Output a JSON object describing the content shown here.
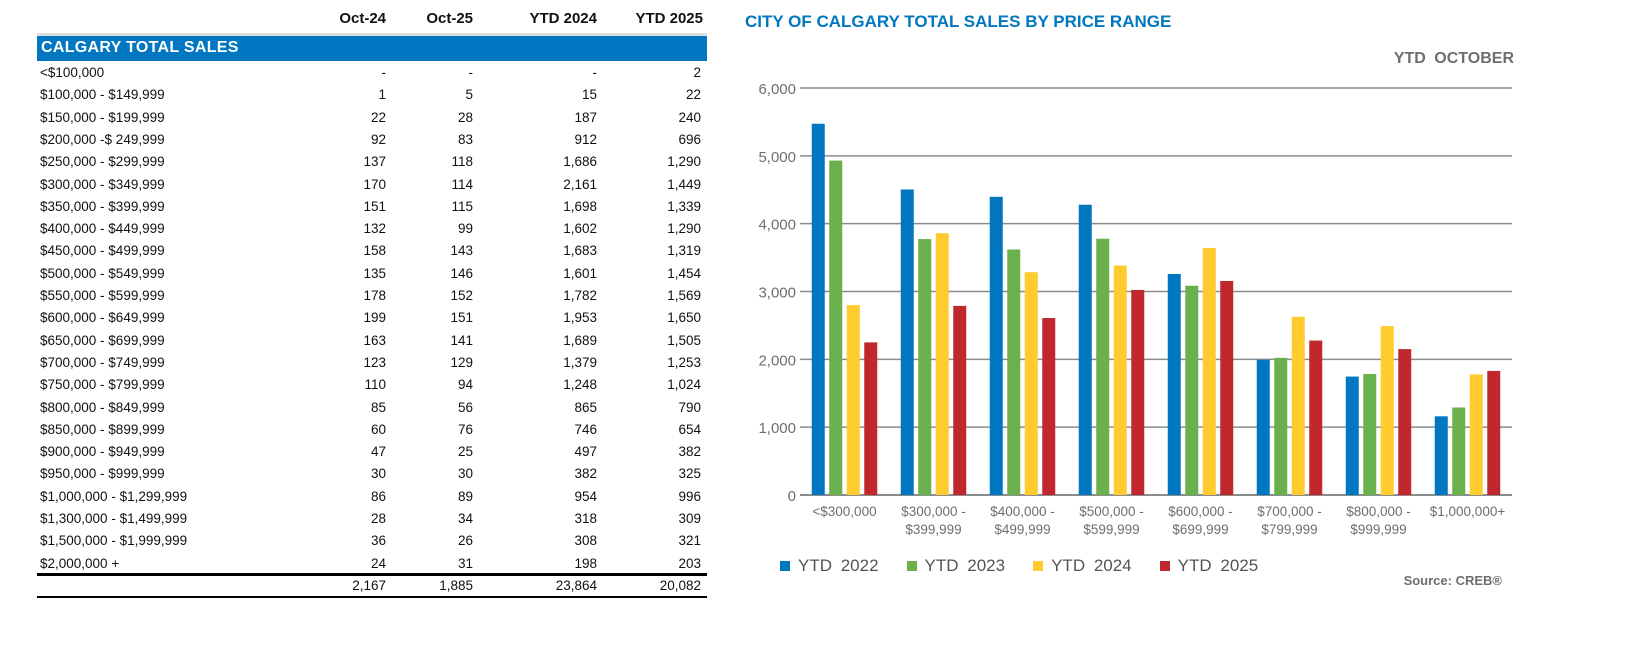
{
  "table": {
    "columns": [
      "Oct-24",
      "Oct-25",
      "YTD 2024",
      "YTD 2025"
    ],
    "section_title": "CALGARY TOTAL SALES",
    "rows": [
      [
        "<$100,000",
        "-",
        "-",
        "-",
        "2"
      ],
      [
        "$100,000 - $149,999",
        "1",
        "5",
        "15",
        "22"
      ],
      [
        "$150,000 - $199,999",
        "22",
        "28",
        "187",
        "240"
      ],
      [
        "$200,000 -$ 249,999",
        "92",
        "83",
        "912",
        "696"
      ],
      [
        "$250,000 - $299,999",
        "137",
        "118",
        "1,686",
        "1,290"
      ],
      [
        "$300,000 - $349,999",
        "170",
        "114",
        "2,161",
        "1,449"
      ],
      [
        "$350,000 - $399,999",
        "151",
        "115",
        "1,698",
        "1,339"
      ],
      [
        "$400,000 - $449,999",
        "132",
        "99",
        "1,602",
        "1,290"
      ],
      [
        "$450,000 - $499,999",
        "158",
        "143",
        "1,683",
        "1,319"
      ],
      [
        "$500,000 - $549,999",
        "135",
        "146",
        "1,601",
        "1,454"
      ],
      [
        "$550,000 - $599,999",
        "178",
        "152",
        "1,782",
        "1,569"
      ],
      [
        "$600,000 - $649,999",
        "199",
        "151",
        "1,953",
        "1,650"
      ],
      [
        "$650,000 - $699,999",
        "163",
        "141",
        "1,689",
        "1,505"
      ],
      [
        "$700,000 - $749,999",
        "123",
        "129",
        "1,379",
        "1,253"
      ],
      [
        "$750,000 - $799,999",
        "110",
        "94",
        "1,248",
        "1,024"
      ],
      [
        "$800,000 - $849,999",
        "85",
        "56",
        "865",
        "790"
      ],
      [
        "$850,000 - $899,999",
        "60",
        "76",
        "746",
        "654"
      ],
      [
        "$900,000 - $949,999",
        "47",
        "25",
        "497",
        "382"
      ],
      [
        "$950,000 - $999,999",
        "30",
        "30",
        "382",
        "325"
      ],
      [
        "$1,000,000 - $1,299,999",
        "86",
        "89",
        "954",
        "996"
      ],
      [
        "$1,300,000 - $1,499,999",
        "28",
        "34",
        "318",
        "309"
      ],
      [
        "$1,500,000 - $1,999,999",
        "36",
        "26",
        "308",
        "321"
      ],
      [
        "$2,000,000 +",
        "24",
        "31",
        "198",
        "203"
      ]
    ],
    "totals": [
      "2,167",
      "1,885",
      "23,864",
      "20,082"
    ],
    "band_color": "#0077c0"
  },
  "chart_data": {
    "type": "bar",
    "title": "CITY OF CALGARY TOTAL SALES BY PRICE RANGE",
    "subtitle": "YTD  OCTOBER",
    "source": "Source: CREB®",
    "categories": [
      "<$300,000",
      "$300,000 - $399,999",
      "$400,000 - $499,999",
      "$500,000 - $599,999",
      "$600,000 - $699,999",
      "$700,000 - $799,999",
      "$800,000 - $999,999",
      "$1,000,000+"
    ],
    "series": [
      {
        "name": "YTD  2022",
        "color": "#0077c0",
        "values": [
          5473,
          4504,
          4396,
          4279,
          3258,
          1994,
          1746,
          1160
        ]
      },
      {
        "name": "YTD  2023",
        "color": "#6ab04c",
        "values": [
          4930,
          3773,
          3619,
          3778,
          3085,
          2022,
          1784,
          1290
        ]
      },
      {
        "name": "YTD  2024",
        "color": "#ffcb2f",
        "values": [
          2800,
          3859,
          3285,
          3383,
          3642,
          2627,
          2490,
          1778
        ]
      },
      {
        "name": "YTD  2025",
        "color": "#c0282d",
        "values": [
          2250,
          2788,
          2609,
          3023,
          3155,
          2277,
          2151,
          1829
        ]
      }
    ],
    "yticks": [
      "0",
      "1,000",
      "2,000",
      "3,000",
      "4,000",
      "5,000",
      "6,000"
    ],
    "ylim": [
      0,
      6000
    ],
    "grid": true,
    "legend": "bottom"
  }
}
